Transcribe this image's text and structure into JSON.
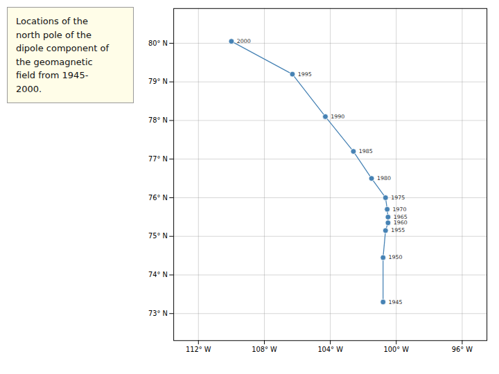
{
  "chart_data": {
    "type": "line",
    "title": "Locations of the\nnorth pole of the\ndipole component of\nthe geomagnetic\nfield from 1945-\n2000.",
    "x": [
      -100.8,
      -100.8,
      -100.65,
      -100.5,
      -100.5,
      -100.55,
      -100.65,
      -101.5,
      -102.6,
      -104.3,
      -106.3,
      -110.0
    ],
    "values": [
      73.3,
      74.45,
      75.15,
      75.35,
      75.5,
      75.7,
      76.0,
      76.5,
      77.2,
      78.1,
      79.2,
      80.05
    ],
    "marker": "circle",
    "annotations": [
      {
        "x": -100.8,
        "y": 73.3,
        "text": "1945"
      },
      {
        "x": -100.8,
        "y": 74.45,
        "text": "1950"
      },
      {
        "x": -100.65,
        "y": 75.15,
        "text": "1955"
      },
      {
        "x": -100.5,
        "y": 75.35,
        "text": "1960"
      },
      {
        "x": -100.5,
        "y": 75.5,
        "text": "1965"
      },
      {
        "x": -100.55,
        "y": 75.7,
        "text": "1970"
      },
      {
        "x": -100.65,
        "y": 76.0,
        "text": "1975"
      },
      {
        "x": -101.5,
        "y": 76.5,
        "text": "1980"
      },
      {
        "x": -102.6,
        "y": 77.2,
        "text": "1985"
      },
      {
        "x": -104.3,
        "y": 78.1,
        "text": "1990"
      },
      {
        "x": -106.3,
        "y": 79.2,
        "text": "1995"
      },
      {
        "x": -110.0,
        "y": 80.05,
        "text": "2000"
      }
    ],
    "xlim": [
      -113.5,
      -94.5
    ],
    "ylim": [
      72.3,
      80.9
    ],
    "xticks": [
      {
        "value": -112,
        "label": "112° W"
      },
      {
        "value": -108,
        "label": "108° W"
      },
      {
        "value": -104,
        "label": "104° W"
      },
      {
        "value": -100,
        "label": "100° W"
      },
      {
        "value": -96,
        "label": "96° W"
      }
    ],
    "yticks": [
      {
        "value": 73,
        "label": "73° N"
      },
      {
        "value": 74,
        "label": "74° N"
      },
      {
        "value": 75,
        "label": "75° N"
      },
      {
        "value": 76,
        "label": "76° N"
      },
      {
        "value": 77,
        "label": "77° N"
      },
      {
        "value": 78,
        "label": "78° N"
      },
      {
        "value": 79,
        "label": "79° N"
      },
      {
        "value": 80,
        "label": "80° N"
      }
    ],
    "grid": true
  }
}
